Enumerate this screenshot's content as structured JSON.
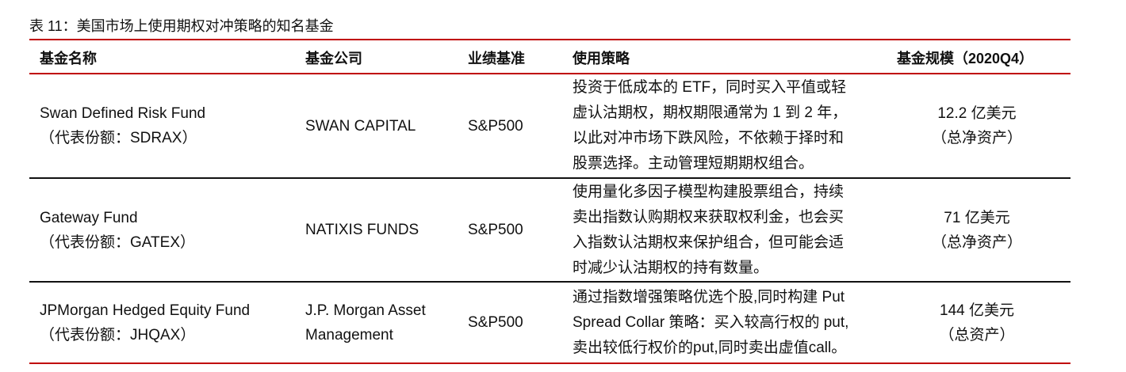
{
  "title": "表 11：美国市场上使用期权对冲策略的知名基金",
  "headers": [
    "基金名称",
    "基金公司",
    "业绩基准",
    "使用策略",
    "基金规模（2020Q4）"
  ],
  "rows": [
    {
      "fund_name": "Swan Defined Risk Fund",
      "ticker": "（代表份额：SDRAX）",
      "company": [
        "SWAN CAPITAL"
      ],
      "benchmark": "S&P500",
      "strategy": [
        "投资于低成本的 ETF，同时买入平值或轻",
        "虚认沽期权，期权期限通常为 1 到 2 年，",
        "以此对冲市场下跌风险，不依赖于择时和",
        "股票选择。主动管理短期期权组合。"
      ],
      "size": "12.2 亿美元",
      "size_note": "（总净资产）"
    },
    {
      "fund_name": "Gateway Fund",
      "ticker": "（代表份额：GATEX）",
      "company": [
        "NATIXIS FUNDS"
      ],
      "benchmark": "S&P500",
      "strategy": [
        "使用量化多因子模型构建股票组合，持续",
        "卖出指数认购期权来获取权利金，也会买",
        "入指数认沽期权来保护组合，但可能会适",
        "时减少认沽期权的持有数量。"
      ],
      "size": "71 亿美元",
      "size_note": "（总净资产）"
    },
    {
      "fund_name": "JPMorgan Hedged Equity Fund",
      "ticker": "（代表份额：JHQAX）",
      "company": [
        "J.P. Morgan Asset",
        "Management"
      ],
      "benchmark": "S&P500",
      "strategy": [
        "通过指数增强策略优选个股,同时构建 Put",
        "Spread Collar 策略：买入较高行权的 put,",
        "卖出较低行权价的put,同时卖出虚值call。"
      ],
      "size": "144 亿美元",
      "size_note": "（总资产）"
    }
  ],
  "colors": {
    "rule": "#c00000",
    "separator": "#111111"
  }
}
